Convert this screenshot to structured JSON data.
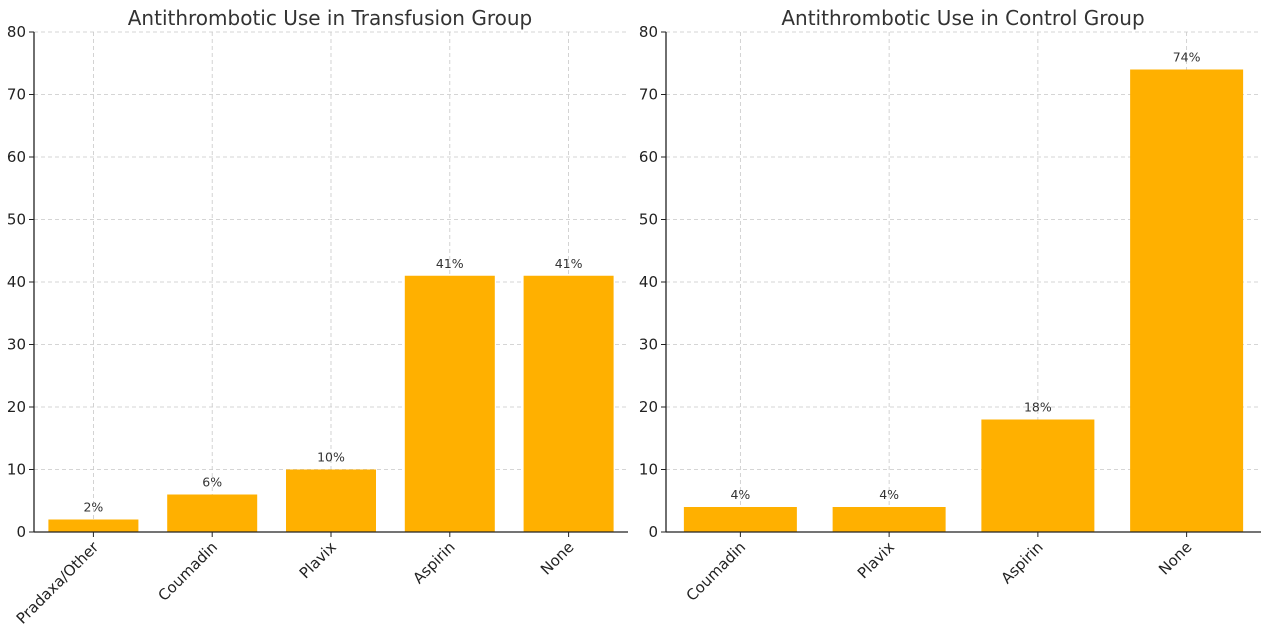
{
  "chart_data": [
    {
      "type": "bar",
      "title": "Antithrombotic Use in Transfusion Group",
      "categories": [
        "Pradaxa/Other",
        "Coumadin",
        "Plavix",
        "Aspirin",
        "None"
      ],
      "values": [
        2,
        6,
        10,
        41,
        41
      ],
      "data_labels": [
        "2%",
        "6%",
        "10%",
        "41%",
        "41%"
      ],
      "xlabel": "",
      "ylabel": "",
      "ylim": [
        0,
        80
      ],
      "yticks": [
        0,
        10,
        20,
        30,
        40,
        50,
        60,
        70,
        80
      ],
      "grid": true,
      "color": "#FFB000"
    },
    {
      "type": "bar",
      "title": "Antithrombotic Use in Control Group",
      "categories": [
        "Coumadin",
        "Plavix",
        "Aspirin",
        "None"
      ],
      "values": [
        4,
        4,
        18,
        74
      ],
      "data_labels": [
        "4%",
        "4%",
        "18%",
        "74%"
      ],
      "xlabel": "",
      "ylabel": "",
      "ylim": [
        0,
        80
      ],
      "yticks": [
        0,
        10,
        20,
        30,
        40,
        50,
        60,
        70,
        80
      ],
      "grid": true,
      "color": "#FFB000"
    }
  ]
}
